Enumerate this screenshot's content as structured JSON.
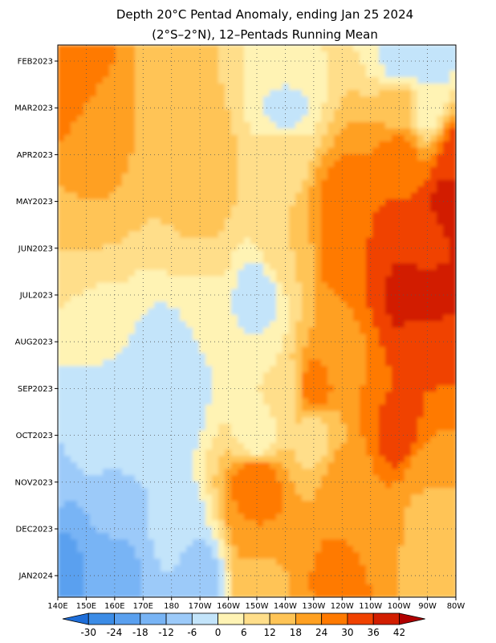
{
  "chart_data": {
    "type": "heatmap",
    "title": "Depth 20°C Pentad Anomaly, ending Jan 25 2024",
    "subtitle": "(2°S–2°N), 12–Pentads Running Mean",
    "x_tick_labels": [
      "140E",
      "150E",
      "160E",
      "170E",
      "180",
      "170W",
      "160W",
      "150W",
      "140W",
      "130W",
      "120W",
      "110W",
      "100W",
      "90W",
      "80W"
    ],
    "x_values_deg_east": [
      140,
      150,
      160,
      170,
      180,
      190,
      200,
      210,
      220,
      230,
      240,
      250,
      260,
      270,
      280
    ],
    "y_tick_labels": [
      "FEB2023",
      "MAR2023",
      "APR2023",
      "MAY2023",
      "JUN2023",
      "JUL2023",
      "AUG2023",
      "SEP2023",
      "OCT2023",
      "NOV2023",
      "DEC2023",
      "JAN2024"
    ],
    "y_direction": "time increases downward",
    "colorbar": {
      "ticks": [
        "-30",
        "-24",
        "-18",
        "-12",
        "-6",
        "0",
        "6",
        "12",
        "18",
        "24",
        "30",
        "36",
        "42"
      ],
      "levels": [
        -30,
        -24,
        -18,
        -12,
        -6,
        0,
        6,
        12,
        18,
        24,
        30,
        36,
        42
      ],
      "colors": [
        "#1e6ed9",
        "#3c8ce6",
        "#5aa0ef",
        "#78b4f5",
        "#9ccaf9",
        "#c3e4fa",
        "#fff3b4",
        "#ffde8a",
        "#ffc456",
        "#ffa021",
        "#ff7a00",
        "#f04200",
        "#d21e00",
        "#b00000"
      ]
    },
    "field_sample_points": [
      {
        "x_label": "140E",
        "time": "FEB2023",
        "value": 28
      },
      {
        "x_label": "150E",
        "time": "FEB2023",
        "value": 30
      },
      {
        "x_label": "180",
        "time": "FEB2023",
        "value": 14
      },
      {
        "x_label": "140W",
        "time": "FEB2023",
        "value": 6
      },
      {
        "x_label": "100W",
        "time": "FEB2023",
        "value": -2
      },
      {
        "x_label": "90W",
        "time": "FEB2023",
        "value": -6
      },
      {
        "x_label": "140E",
        "time": "MAR2023",
        "value": 26
      },
      {
        "x_label": "160E",
        "time": "MAR2023",
        "value": 18
      },
      {
        "x_label": "140W",
        "time": "MAR2023",
        "value": -3
      },
      {
        "x_label": "100W",
        "time": "MAR2023",
        "value": 16
      },
      {
        "x_label": "90W",
        "time": "MAR2023",
        "value": 4
      },
      {
        "x_label": "150E",
        "time": "APR2023",
        "value": 20
      },
      {
        "x_label": "170W",
        "time": "APR2023",
        "value": 16
      },
      {
        "x_label": "140W",
        "time": "APR2023",
        "value": 10
      },
      {
        "x_label": "100W",
        "time": "APR2023",
        "value": 26
      },
      {
        "x_label": "80W",
        "time": "APR2023",
        "value": 32
      },
      {
        "x_label": "150E",
        "time": "MAY2023",
        "value": 18
      },
      {
        "x_label": "170W",
        "time": "MAY2023",
        "value": 14
      },
      {
        "x_label": "120W",
        "time": "MAY2023",
        "value": 26
      },
      {
        "x_label": "100W",
        "time": "MAY2023",
        "value": 30
      },
      {
        "x_label": "80W",
        "time": "MAY2023",
        "value": 42
      },
      {
        "x_label": "140E",
        "time": "JUN2023",
        "value": 12
      },
      {
        "x_label": "170W",
        "time": "JUN2023",
        "value": 12
      },
      {
        "x_label": "140W",
        "time": "JUN2023",
        "value": 12
      },
      {
        "x_label": "120W",
        "time": "JUN2023",
        "value": 28
      },
      {
        "x_label": "100W",
        "time": "JUN2023",
        "value": 36
      },
      {
        "x_label": "90W",
        "time": "JUN2023",
        "value": 34
      },
      {
        "x_label": "150E",
        "time": "JUL2023",
        "value": 6
      },
      {
        "x_label": "170W",
        "time": "JUL2023",
        "value": 4
      },
      {
        "x_label": "150W",
        "time": "JUL2023",
        "value": -3
      },
      {
        "x_label": "110W",
        "time": "JUL2023",
        "value": 30
      },
      {
        "x_label": "100W",
        "time": "JUL2023",
        "value": 38
      },
      {
        "x_label": "90W",
        "time": "JUL2023",
        "value": 42
      },
      {
        "x_label": "150E",
        "time": "AUG2023",
        "value": 2
      },
      {
        "x_label": "180",
        "time": "AUG2023",
        "value": -2
      },
      {
        "x_label": "150W",
        "time": "AUG2023",
        "value": 0
      },
      {
        "x_label": "120W",
        "time": "AUG2023",
        "value": 18
      },
      {
        "x_label": "90W",
        "time": "AUG2023",
        "value": 30
      },
      {
        "x_label": "150E",
        "time": "SEP2023",
        "value": -3
      },
      {
        "x_label": "180",
        "time": "SEP2023",
        "value": -6
      },
      {
        "x_label": "140W",
        "time": "SEP2023",
        "value": 10
      },
      {
        "x_label": "130W",
        "time": "SEP2023",
        "value": 26
      },
      {
        "x_label": "100W",
        "time": "SEP2023",
        "value": 30
      },
      {
        "x_label": "150E",
        "time": "OCT2023",
        "value": -3
      },
      {
        "x_label": "170E",
        "time": "OCT2023",
        "value": -4
      },
      {
        "x_label": "150W",
        "time": "OCT2023",
        "value": 2
      },
      {
        "x_label": "130W",
        "time": "OCT2023",
        "value": 10
      },
      {
        "x_label": "100W",
        "time": "OCT2023",
        "value": 32
      },
      {
        "x_label": "140E",
        "time": "NOV2023",
        "value": -8
      },
      {
        "x_label": "160E",
        "time": "NOV2023",
        "value": -6
      },
      {
        "x_label": "150W",
        "time": "NOV2023",
        "value": 30
      },
      {
        "x_label": "120W",
        "time": "NOV2023",
        "value": 20
      },
      {
        "x_label": "90W",
        "time": "NOV2023",
        "value": 18
      },
      {
        "x_label": "140E",
        "time": "DEC2023",
        "value": -18
      },
      {
        "x_label": "160E",
        "time": "DEC2023",
        "value": -12
      },
      {
        "x_label": "180",
        "time": "DEC2023",
        "value": -5
      },
      {
        "x_label": "150W",
        "time": "DEC2023",
        "value": 24
      },
      {
        "x_label": "110W",
        "time": "DEC2023",
        "value": 22
      },
      {
        "x_label": "90W",
        "time": "DEC2023",
        "value": 16
      },
      {
        "x_label": "140E",
        "time": "JAN2024",
        "value": -24
      },
      {
        "x_label": "160E",
        "time": "JAN2024",
        "value": -14
      },
      {
        "x_label": "170W",
        "time": "JAN2024",
        "value": -8
      },
      {
        "x_label": "150W",
        "time": "JAN2024",
        "value": 16
      },
      {
        "x_label": "120W",
        "time": "JAN2024",
        "value": 26
      },
      {
        "x_label": "90W",
        "time": "JAN2024",
        "value": 16
      }
    ],
    "grid": "dotted",
    "legend_placement": "bottom"
  }
}
